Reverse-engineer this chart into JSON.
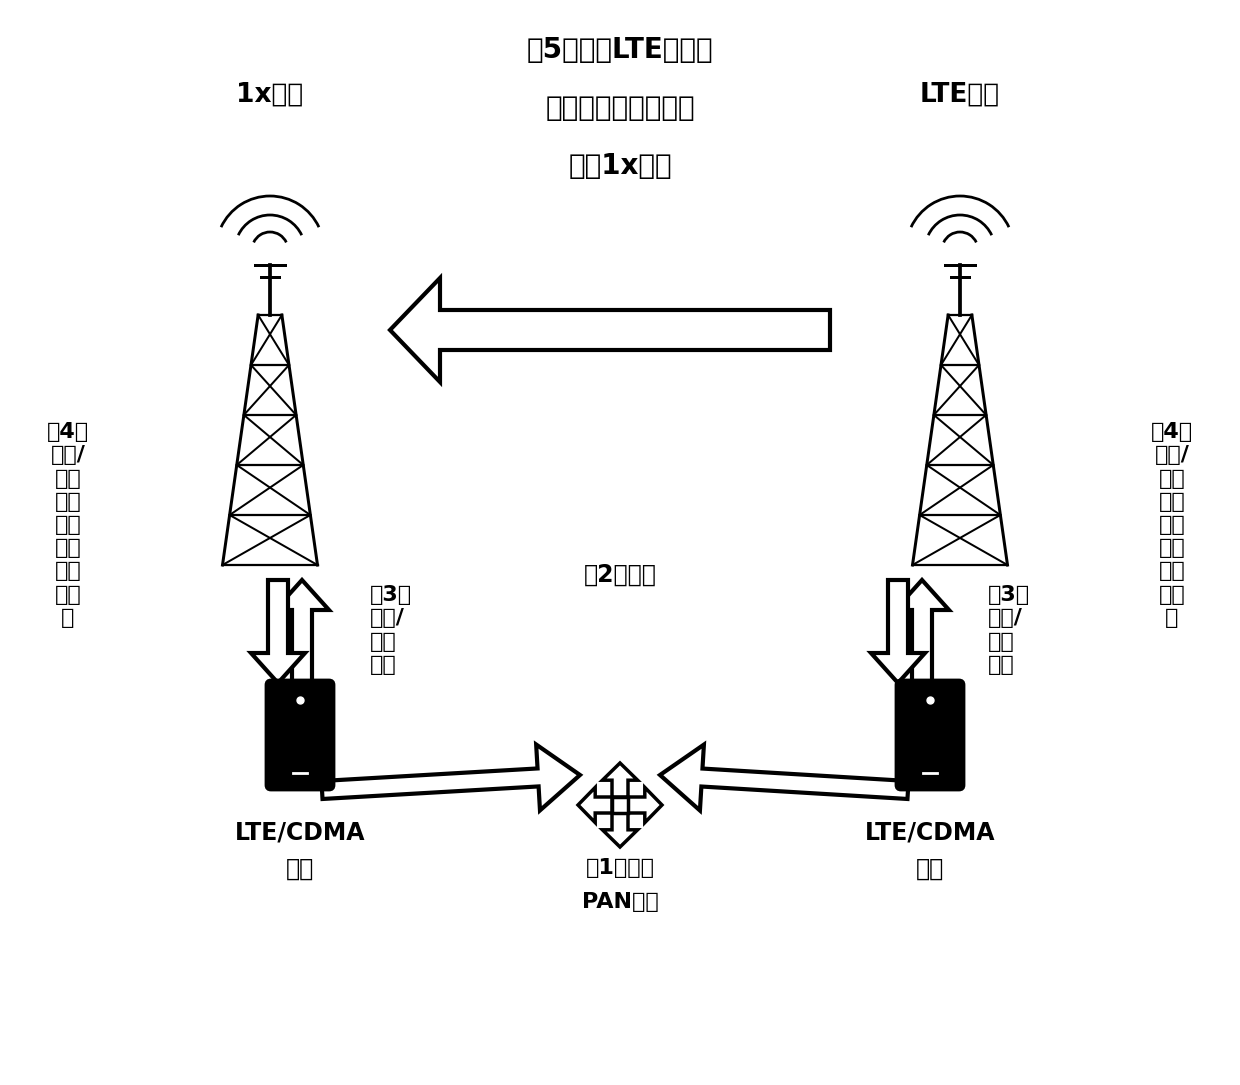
{
  "bg_color": "#ffffff",
  "title_lines": [
    "（5）注册LTE网络的",
    "终端响应语音寻呼切",
    "换到1x网络"
  ],
  "left_tower_label": "1x网络",
  "right_tower_label": "LTE网络",
  "left_terminal_label": "LTE/CDMA\n终端",
  "right_terminal_label": "LTE/CDMA\n终端",
  "pan_label_1": "（1）加入",
  "pan_label_2": "PAN网络",
  "left_step3_label": "（3）\n注册/\n代理\n注册",
  "right_step3_label": "（3）\n注册/\n代理\n注册",
  "step2_label": "（2）配对",
  "left_step4_label": "（4）\n接收/\n代理\n接收\n系统\n信息\n及寻\n呼消\n息",
  "right_step4_label": "（4）\n接收/\n代理\n接收\n系统\n信息\n及寻\n呼消\n息",
  "text_color": "#000000",
  "font_size_title": 20,
  "font_size_label": 17,
  "font_size_small": 15
}
